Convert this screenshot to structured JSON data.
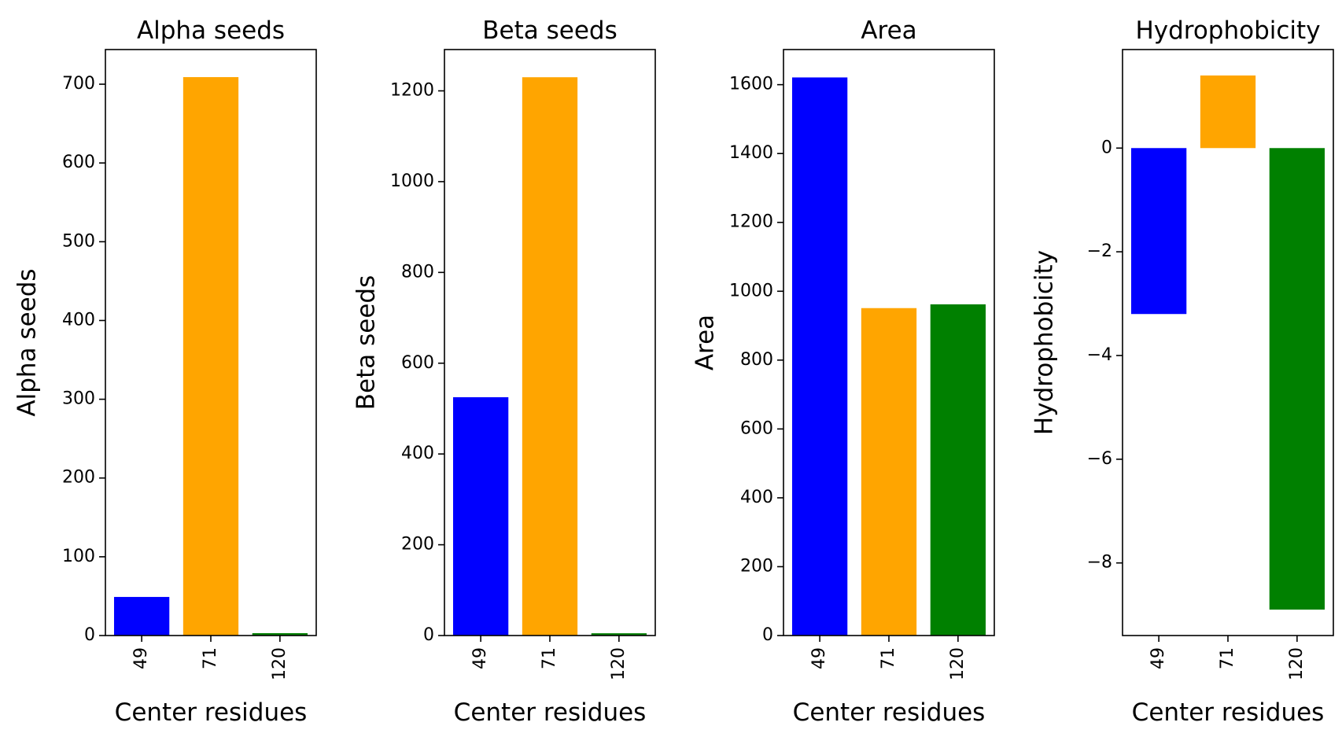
{
  "chart_data": [
    {
      "type": "bar",
      "title": "Alpha seeds",
      "xlabel": "Center residues",
      "ylabel": "Alpha seeds",
      "categories": [
        "49",
        "71",
        "120"
      ],
      "values": [
        49,
        709,
        3
      ],
      "colors": [
        "#0000ff",
        "#ffa500",
        "#008000"
      ],
      "ylim": [
        0,
        744
      ],
      "yticks": [
        0,
        100,
        200,
        300,
        400,
        500,
        600,
        700
      ],
      "grid": false,
      "legend": "none"
    },
    {
      "type": "bar",
      "title": "Beta seeds",
      "xlabel": "Center residues",
      "ylabel": "Beta seeds",
      "categories": [
        "49",
        "71",
        "120"
      ],
      "values": [
        525,
        1230,
        5
      ],
      "colors": [
        "#0000ff",
        "#ffa500",
        "#008000"
      ],
      "ylim": [
        0,
        1291
      ],
      "yticks": [
        0,
        200,
        400,
        600,
        800,
        1000,
        1200
      ],
      "grid": false,
      "legend": "none"
    },
    {
      "type": "bar",
      "title": "Area",
      "xlabel": "Center residues",
      "ylabel": "Area",
      "categories": [
        "49",
        "71",
        "120"
      ],
      "values": [
        1621,
        951,
        962
      ],
      "colors": [
        "#0000ff",
        "#ffa500",
        "#008000"
      ],
      "ylim": [
        0,
        1702
      ],
      "yticks": [
        0,
        200,
        400,
        600,
        800,
        1000,
        1200,
        1400,
        1600
      ],
      "grid": false,
      "legend": "none"
    },
    {
      "type": "bar",
      "title": "Hydrophobicity",
      "xlabel": "Center residues",
      "ylabel": "Hydrophobicity",
      "categories": [
        "49",
        "71",
        "120"
      ],
      "values": [
        -3.2,
        1.4,
        -8.9
      ],
      "colors": [
        "#0000ff",
        "#ffa500",
        "#008000"
      ],
      "ylim": [
        -9.4,
        1.9
      ],
      "yticks": [
        0,
        -2,
        -4,
        -6,
        -8
      ],
      "ytick_labels": [
        "0",
        "−2",
        "−4",
        "−6",
        "−8"
      ],
      "grid": false,
      "legend": "none"
    }
  ]
}
